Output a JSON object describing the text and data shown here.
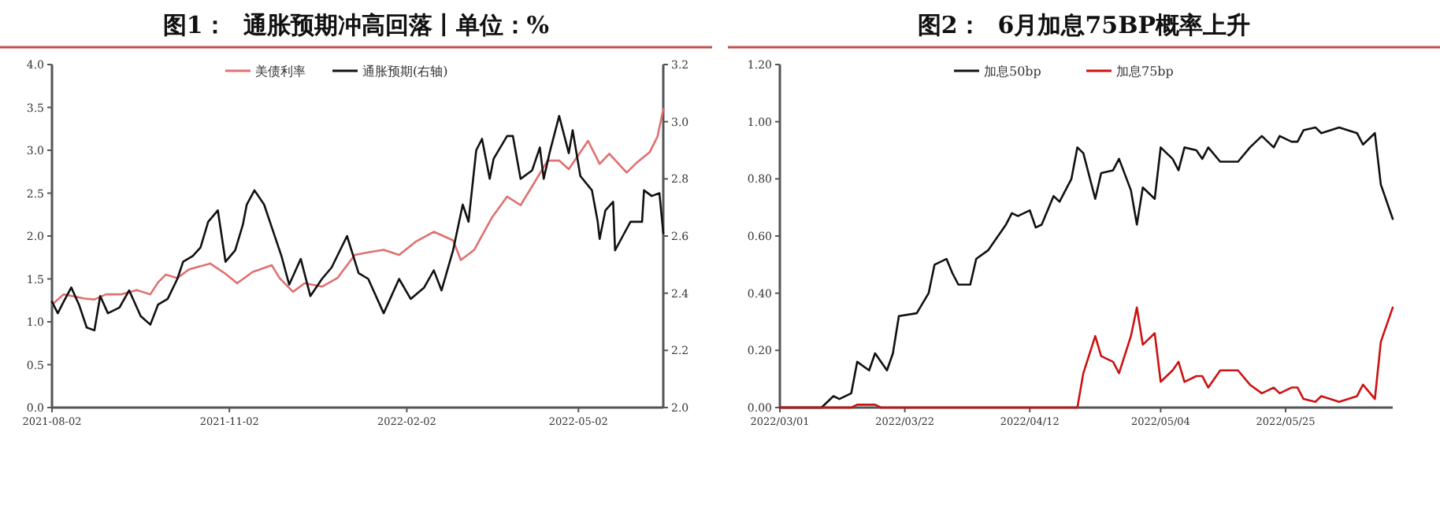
{
  "chart_data": [
    {
      "type": "line",
      "title": "图1：  通胀预期冲高回落丨单位：%",
      "xlim": [
        "2021-08-02",
        "2022-06-15"
      ],
      "xticks": [
        {
          "value": "2021-08-02",
          "label": "2021-08-02"
        },
        {
          "value": "2021-11-02",
          "label": "2021-11-02"
        },
        {
          "value": "2022-02-02",
          "label": "2022-02-02"
        },
        {
          "value": "2022-05-02",
          "label": "2022-05-02"
        }
      ],
      "ylim": [
        0,
        4
      ],
      "yticks": [
        {
          "value": 0,
          "label": "0.0"
        },
        {
          "value": 0.5,
          "label": "0.5"
        },
        {
          "value": 1,
          "label": "1.0"
        },
        {
          "value": 1.5,
          "label": "1.5"
        },
        {
          "value": 2,
          "label": "2.0"
        },
        {
          "value": 2.5,
          "label": "2.5"
        },
        {
          "value": 3,
          "label": "3.0"
        },
        {
          "value": 3.5,
          "label": "3.5"
        },
        {
          "value": 4,
          "label": "4.0"
        }
      ],
      "y2lim": [
        2,
        3.2
      ],
      "y2ticks": [
        {
          "value": 2,
          "label": "2.0"
        },
        2.2,
        2.4,
        2.6,
        2.8,
        {
          "value": 3,
          "label": "3.0"
        },
        3.2
      ],
      "legend": "top",
      "grid": false,
      "series": [
        {
          "name": "美债利率",
          "color": "#e07070",
          "x": [
            "2021-08-02",
            "2021-08-08",
            "2021-08-19",
            "2021-08-24",
            "2021-08-30",
            "2021-09-07",
            "2021-09-15",
            "2021-09-22",
            "2021-09-26",
            "2021-09-30",
            "2021-10-06",
            "2021-10-12",
            "2021-10-23",
            "2021-10-31",
            "2021-11-06",
            "2021-11-14",
            "2021-11-24",
            "2021-11-28",
            "2021-12-05",
            "2021-12-11",
            "2021-12-20",
            "2021-12-28",
            "2022-01-06",
            "2022-01-13",
            "2022-01-21",
            "2022-01-29",
            "2022-02-07",
            "2022-02-16",
            "2022-02-26",
            "2022-03-02",
            "2022-03-09",
            "2022-03-18",
            "2022-03-26",
            "2022-04-02",
            "2022-04-08",
            "2022-04-16",
            "2022-04-22",
            "2022-04-27",
            "2022-05-07",
            "2022-05-13",
            "2022-05-18",
            "2022-05-27",
            "2022-06-01",
            "2022-06-08",
            "2022-06-12",
            "2022-06-15"
          ],
          "values": [
            1.2,
            1.32,
            1.27,
            1.26,
            1.32,
            1.32,
            1.37,
            1.32,
            1.46,
            1.55,
            1.51,
            1.61,
            1.68,
            1.56,
            1.45,
            1.58,
            1.66,
            1.51,
            1.35,
            1.45,
            1.41,
            1.51,
            1.78,
            1.81,
            1.84,
            1.78,
            1.94,
            2.05,
            1.95,
            1.72,
            1.84,
            2.21,
            2.46,
            2.36,
            2.58,
            2.88,
            2.88,
            2.78,
            3.11,
            2.84,
            2.96,
            2.74,
            2.85,
            2.98,
            3.16,
            3.48
          ]
        },
        {
          "name": "通胀预期(右轴)",
          "color": "#111111",
          "axis": "y2",
          "x": [
            "2021-08-02",
            "2021-08-05",
            "2021-08-08",
            "2021-08-12",
            "2021-08-16",
            "2021-08-20",
            "2021-08-24",
            "2021-08-27",
            "2021-08-31",
            "2021-09-06",
            "2021-09-11",
            "2021-09-17",
            "2021-09-22",
            "2021-09-26",
            "2021-10-01",
            "2021-10-06",
            "2021-10-09",
            "2021-10-14",
            "2021-10-18",
            "2021-10-22",
            "2021-10-27",
            "2021-10-31",
            "2021-11-05",
            "2021-11-09",
            "2021-11-11",
            "2021-11-15",
            "2021-11-20",
            "2021-11-24",
            "2021-11-29",
            "2021-12-03",
            "2021-12-09",
            "2021-12-14",
            "2021-12-20",
            "2021-12-25",
            "2022-01-02",
            "2022-01-08",
            "2022-01-13",
            "2022-01-21",
            "2022-01-29",
            "2022-02-04",
            "2022-02-11",
            "2022-02-16",
            "2022-02-20",
            "2022-02-26",
            "2022-03-03",
            "2022-03-06",
            "2022-03-10",
            "2022-03-13",
            "2022-03-17",
            "2022-03-19",
            "2022-03-26",
            "2022-03-29",
            "2022-04-02",
            "2022-04-08",
            "2022-04-12",
            "2022-04-14",
            "2022-04-17",
            "2022-04-22",
            "2022-04-27",
            "2022-04-29",
            "2022-05-03",
            "2022-05-09",
            "2022-05-12",
            "2022-05-13",
            "2022-05-16",
            "2022-05-20",
            "2022-05-21",
            "2022-05-25",
            "2022-05-29",
            "2022-06-04",
            "2022-06-05",
            "2022-06-09",
            "2022-06-13",
            "2022-06-15"
          ],
          "values": [
            2.37,
            2.33,
            2.37,
            2.42,
            2.36,
            2.28,
            2.27,
            2.39,
            2.33,
            2.35,
            2.41,
            2.32,
            2.29,
            2.36,
            2.38,
            2.45,
            2.51,
            2.53,
            2.56,
            2.65,
            2.69,
            2.51,
            2.55,
            2.64,
            2.71,
            2.76,
            2.71,
            2.63,
            2.53,
            2.43,
            2.52,
            2.39,
            2.45,
            2.49,
            2.6,
            2.47,
            2.45,
            2.33,
            2.45,
            2.38,
            2.42,
            2.48,
            2.41,
            2.55,
            2.71,
            2.65,
            2.9,
            2.94,
            2.8,
            2.87,
            2.95,
            2.95,
            2.8,
            2.83,
            2.91,
            2.8,
            2.89,
            3.02,
            2.89,
            2.97,
            2.81,
            2.76,
            2.65,
            2.59,
            2.69,
            2.72,
            2.55,
            2.6,
            2.65,
            2.65,
            2.76,
            2.74,
            2.75,
            2.61
          ]
        }
      ]
    },
    {
      "type": "line",
      "title": "图2：  6月加息75BP概率上升",
      "xlim": [
        "2022-03-01",
        "2022-06-12"
      ],
      "xticks": [
        {
          "value": "2022-03-01",
          "label": "2022/03/01"
        },
        {
          "value": "2022-03-22",
          "label": "2022/03/22"
        },
        {
          "value": "2022-04-12",
          "label": "2022/04/12"
        },
        {
          "value": "2022-05-04",
          "label": "2022/05/04"
        },
        {
          "value": "2022-05-25",
          "label": "2022/05/25"
        }
      ],
      "ylim": [
        0,
        1.2
      ],
      "yticks": [
        {
          "value": 0,
          "label": "0.00"
        },
        {
          "value": 0.2,
          "label": "0.20"
        },
        {
          "value": 0.4,
          "label": "0.40"
        },
        {
          "value": 0.6,
          "label": "0.60"
        },
        {
          "value": 0.8,
          "label": "0.80"
        },
        {
          "value": 1,
          "label": "1.00"
        },
        {
          "value": 1.2,
          "label": "1.20"
        }
      ],
      "legend": "top",
      "grid": false,
      "series": [
        {
          "name": "加息50bp",
          "color": "#111111",
          "x": [
            "2022-03-01",
            "2022-03-04",
            "2022-03-08",
            "2022-03-10",
            "2022-03-11",
            "2022-03-13",
            "2022-03-14",
            "2022-03-16",
            "2022-03-17",
            "2022-03-19",
            "2022-03-20",
            "2022-03-21",
            "2022-03-24",
            "2022-03-26",
            "2022-03-27",
            "2022-03-29",
            "2022-03-30",
            "2022-03-31",
            "2022-04-02",
            "2022-04-03",
            "2022-04-05",
            "2022-04-06",
            "2022-04-08",
            "2022-04-09",
            "2022-04-10",
            "2022-04-12",
            "2022-04-13",
            "2022-04-14",
            "2022-04-16",
            "2022-04-17",
            "2022-04-19",
            "2022-04-20",
            "2022-04-21",
            "2022-04-23",
            "2022-04-24",
            "2022-04-26",
            "2022-04-27",
            "2022-04-29",
            "2022-04-30",
            "2022-05-01",
            "2022-05-03",
            "2022-05-04",
            "2022-05-06",
            "2022-05-07",
            "2022-05-08",
            "2022-05-10",
            "2022-05-11",
            "2022-05-12",
            "2022-05-14",
            "2022-05-17",
            "2022-05-19",
            "2022-05-21",
            "2022-05-23",
            "2022-05-24",
            "2022-05-26",
            "2022-05-27",
            "2022-05-28",
            "2022-05-30",
            "2022-05-31",
            "2022-06-03",
            "2022-06-06",
            "2022-06-07",
            "2022-06-09",
            "2022-06-10",
            "2022-06-12"
          ],
          "values": [
            0,
            0,
            0,
            0.04,
            0.03,
            0.05,
            0.16,
            0.13,
            0.19,
            0.13,
            0.19,
            0.32,
            0.33,
            0.4,
            0.5,
            0.52,
            0.47,
            0.43,
            0.43,
            0.52,
            0.55,
            0.58,
            0.64,
            0.68,
            0.67,
            0.69,
            0.63,
            0.64,
            0.74,
            0.72,
            0.8,
            0.91,
            0.89,
            0.73,
            0.82,
            0.83,
            0.87,
            0.76,
            0.64,
            0.77,
            0.73,
            0.91,
            0.87,
            0.83,
            0.91,
            0.9,
            0.87,
            0.91,
            0.86,
            0.86,
            0.91,
            0.95,
            0.91,
            0.95,
            0.93,
            0.93,
            0.97,
            0.98,
            0.96,
            0.98,
            0.96,
            0.92,
            0.96,
            0.78,
            0.66
          ]
        },
        {
          "name": "加息75bp",
          "color": "#cc1111",
          "x": [
            "2022-03-01",
            "2022-03-13",
            "2022-03-14",
            "2022-03-16",
            "2022-03-17",
            "2022-03-18",
            "2022-04-19",
            "2022-04-20",
            "2022-04-21",
            "2022-04-23",
            "2022-04-24",
            "2022-04-26",
            "2022-04-27",
            "2022-04-29",
            "2022-04-30",
            "2022-05-01",
            "2022-05-03",
            "2022-05-04",
            "2022-05-06",
            "2022-05-07",
            "2022-05-08",
            "2022-05-10",
            "2022-05-11",
            "2022-05-12",
            "2022-05-14",
            "2022-05-17",
            "2022-05-19",
            "2022-05-21",
            "2022-05-23",
            "2022-05-24",
            "2022-05-26",
            "2022-05-27",
            "2022-05-28",
            "2022-05-30",
            "2022-05-31",
            "2022-06-03",
            "2022-06-06",
            "2022-06-07",
            "2022-06-09",
            "2022-06-10",
            "2022-06-12"
          ],
          "values": [
            0,
            0,
            0.01,
            0.01,
            0.01,
            0,
            0,
            0,
            0.12,
            0.25,
            0.18,
            0.16,
            0.12,
            0.25,
            0.35,
            0.22,
            0.26,
            0.09,
            0.13,
            0.16,
            0.09,
            0.11,
            0.11,
            0.07,
            0.13,
            0.13,
            0.08,
            0.05,
            0.07,
            0.05,
            0.07,
            0.07,
            0.03,
            0.02,
            0.04,
            0.02,
            0.04,
            0.08,
            0.03,
            0.23,
            0.35
          ]
        }
      ]
    }
  ]
}
